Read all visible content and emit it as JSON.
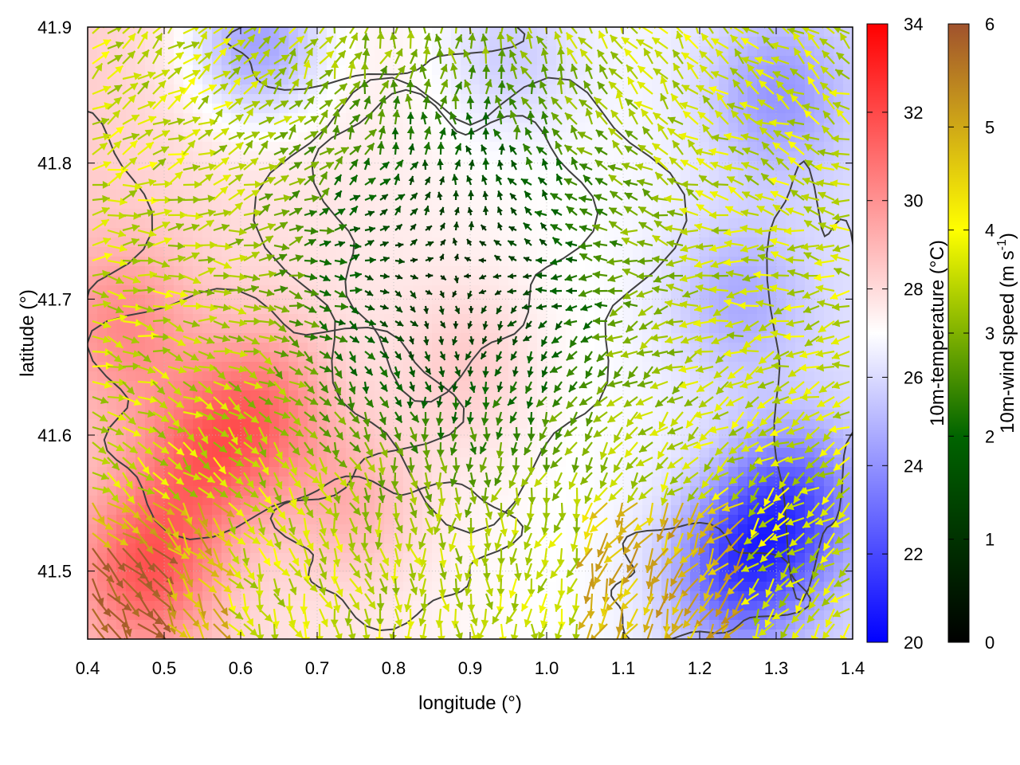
{
  "chart_data": {
    "type": "heatmap",
    "xlabel": "longitude (°)",
    "ylabel": "latitude (°)",
    "xlim": [
      0.4,
      1.4
    ],
    "ylim": [
      41.45,
      41.9
    ],
    "xticks": [
      "0.4",
      "0.5",
      "0.6",
      "0.7",
      "0.8",
      "0.9",
      "1.0",
      "1.1",
      "1.2",
      "1.3",
      "1.4"
    ],
    "yticks": [
      "41.5",
      "41.6",
      "41.7",
      "41.8",
      "41.9"
    ],
    "grid": true,
    "colorbars": [
      {
        "label": "10m-temperature (°C)",
        "range": [
          20,
          34
        ],
        "ticks": [
          "20",
          "22",
          "24",
          "26",
          "28",
          "30",
          "32",
          "34"
        ],
        "colors": [
          "#0000ff",
          "#ffffff",
          "#ff0000"
        ]
      },
      {
        "label": "10m-wind speed (m s",
        "label_sup": "-1",
        "label_end": ")",
        "range": [
          0,
          6
        ],
        "ticks": [
          "0",
          "1",
          "2",
          "3",
          "4",
          "5",
          "6"
        ],
        "colors": [
          "#000000",
          "#006400",
          "#ffff00",
          "#a0522d"
        ]
      }
    ],
    "temperature_field": {
      "hot_centers": [
        {
          "lon": 0.48,
          "lat": 41.5,
          "temp": 31.5
        },
        {
          "lon": 0.55,
          "lat": 41.58,
          "temp": 30.5
        },
        {
          "lon": 0.63,
          "lat": 41.62,
          "temp": 30.5
        },
        {
          "lon": 0.45,
          "lat": 41.68,
          "temp": 29.5
        },
        {
          "lon": 0.75,
          "lat": 41.55,
          "temp": 29.0
        },
        {
          "lon": 0.9,
          "lat": 41.65,
          "temp": 28.5
        }
      ],
      "cold_centers": [
        {
          "lon": 1.25,
          "lat": 41.5,
          "temp": 21.5
        },
        {
          "lon": 1.32,
          "lat": 41.55,
          "temp": 22.0
        },
        {
          "lon": 0.62,
          "lat": 41.89,
          "temp": 22.5
        },
        {
          "lon": 1.3,
          "lat": 41.85,
          "temp": 24.0
        },
        {
          "lon": 1.25,
          "lat": 41.7,
          "temp": 24.5
        },
        {
          "lon": 0.95,
          "lat": 41.88,
          "temp": 25.0
        }
      ]
    }
  }
}
